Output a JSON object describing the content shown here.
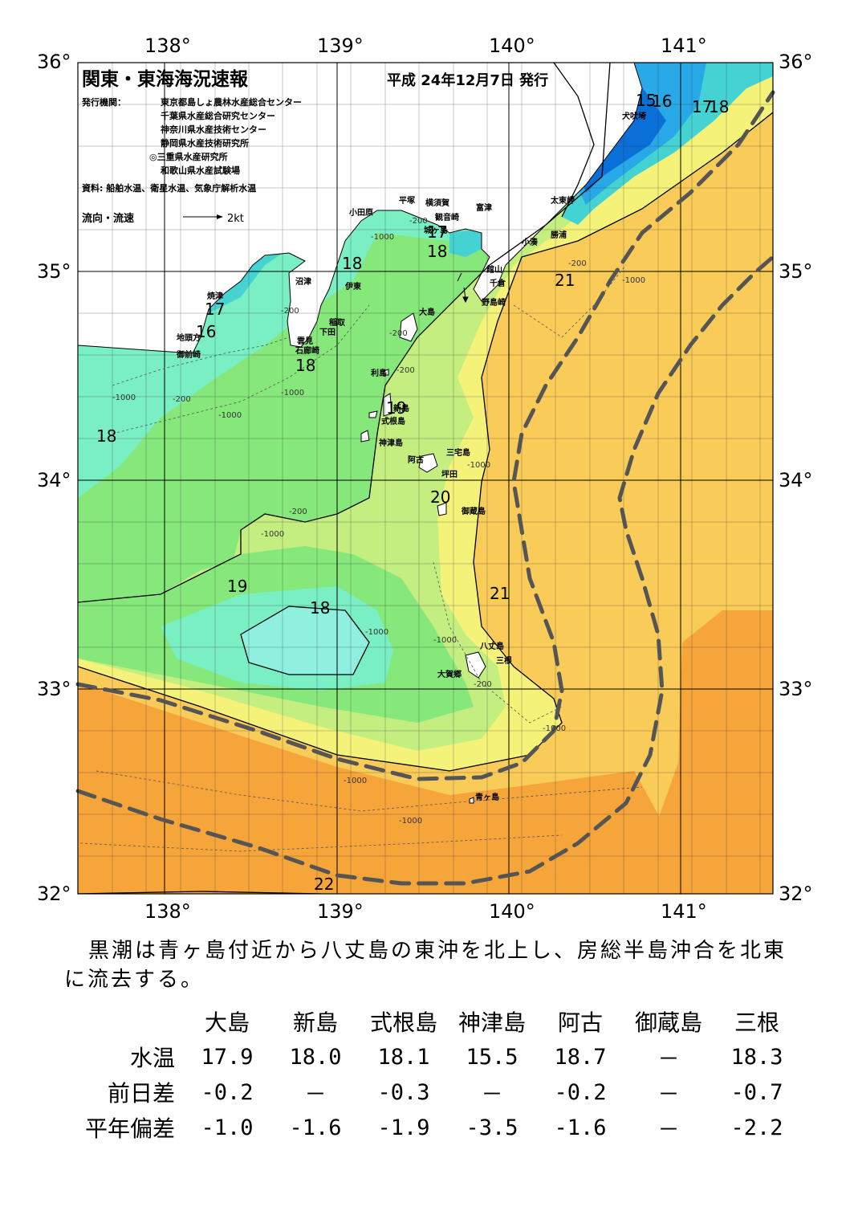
{
  "header": {
    "title": "関東・東海海況速報",
    "issue_date": "平成 24年12月7日 発行",
    "issuer_label": "発行機関：",
    "issuers": [
      "東京都島しょ農林水産総合センター",
      "千葉県水産総合研究センター",
      "神奈川県水産技術センター",
      "静岡県水産技術研究所",
      "◎三重県水産研究所",
      "和歌山県水産試験場"
    ],
    "source": "資料: 船舶水温、衛星水温、気象庁解析水温",
    "current_legend": "流向・流速",
    "current_scale": "2kt"
  },
  "axes": {
    "lon_top": [
      "138°",
      "139°",
      "140°",
      "141°"
    ],
    "lon_bottom": [
      "138°",
      "139°",
      "140°",
      "141°"
    ],
    "lat_left": [
      "36°",
      "35°",
      "34°",
      "33°",
      "32°"
    ],
    "lat_right": [
      "36°",
      "35°",
      "34°",
      "33°",
      "32°"
    ]
  },
  "places": {
    "p_inubo": "犬吠埼",
    "p_taito": "太東岬",
    "p_katsuura": "勝浦",
    "p_kominato": "小湊",
    "p_tomitsu": "富津",
    "p_yokosuka": "横須賀",
    "p_hiratsuka": "平塚",
    "p_odawara": "小田原",
    "p_kannon": "観音崎",
    "p_jogashima": "城ヶ島",
    "p_tateyama": "館山",
    "p_chikura": "千倉",
    "p_nojima": "野島崎",
    "p_numazu": "沼津",
    "p_ito": "伊東",
    "p_inatori": "稲取",
    "p_shimoda": "下田",
    "p_kumomi": "雲見",
    "p_irozaki": "石廊崎",
    "p_yaizu": "焼津",
    "p_jitogata": "地頭方",
    "p_omaezaki": "御前崎",
    "p_oshima": "大島",
    "p_toshima": "利島",
    "p_niijima": "新島",
    "p_shikine": "式根島",
    "p_kozu": "神津島",
    "p_miyake": "三宅島",
    "p_ako": "阿古",
    "p_tsubota": "坪田",
    "p_mikura": "御蔵島",
    "p_hachijo": "八丈島",
    "p_mine": "三根",
    "p_okago": "大賀郷",
    "p_aoga": "青ヶ島"
  },
  "isotherms": {
    "t15": "15",
    "t16a": "16",
    "t17a": "17",
    "t18a": "18",
    "t17b": "17",
    "t18b": "18",
    "t18c": "18",
    "t21a": "21",
    "t17c": "17",
    "t16b": "16",
    "t18d": "18",
    "t18e": "18",
    "t19a": "19",
    "t20": "20",
    "t19b": "19",
    "t18f": "18",
    "t21b": "21",
    "t22": "22"
  },
  "depth_labels": {
    "d200": "-200",
    "d1000": "-1000"
  },
  "colors": {
    "t_le15": "#0a6fd6",
    "t16": "#29a8e8",
    "t17": "#45d2d2",
    "t18": "#79efc3",
    "t19": "#86e77a",
    "t20": "#c4ee80",
    "t21": "#f5f27a",
    "t22": "#f9cc5a",
    "t23": "#f6a53a",
    "kuroshio_axis": "#555555"
  },
  "summary": {
    "line1": "黒潮は青ヶ島付近から八丈島の東沖を北上し、房総半島沖合を北東",
    "line2": "に流去する。"
  },
  "table": {
    "stations": [
      "大島",
      "新島",
      "式根島",
      "神津島",
      "阿古",
      "御蔵島",
      "三根"
    ],
    "rows": [
      {
        "label": "水温",
        "values": [
          "17.9",
          "18.0",
          "18.1",
          "15.5",
          "18.7",
          "－",
          "18.3"
        ]
      },
      {
        "label": "前日差",
        "values": [
          "-0.2",
          "－",
          "-0.3",
          "－",
          "-0.2",
          "－",
          "-0.7"
        ]
      },
      {
        "label": "平年偏差",
        "values": [
          "-1.0",
          "-1.6",
          "-1.9",
          "-3.5",
          "-1.6",
          "－",
          "-2.2"
        ]
      }
    ]
  }
}
